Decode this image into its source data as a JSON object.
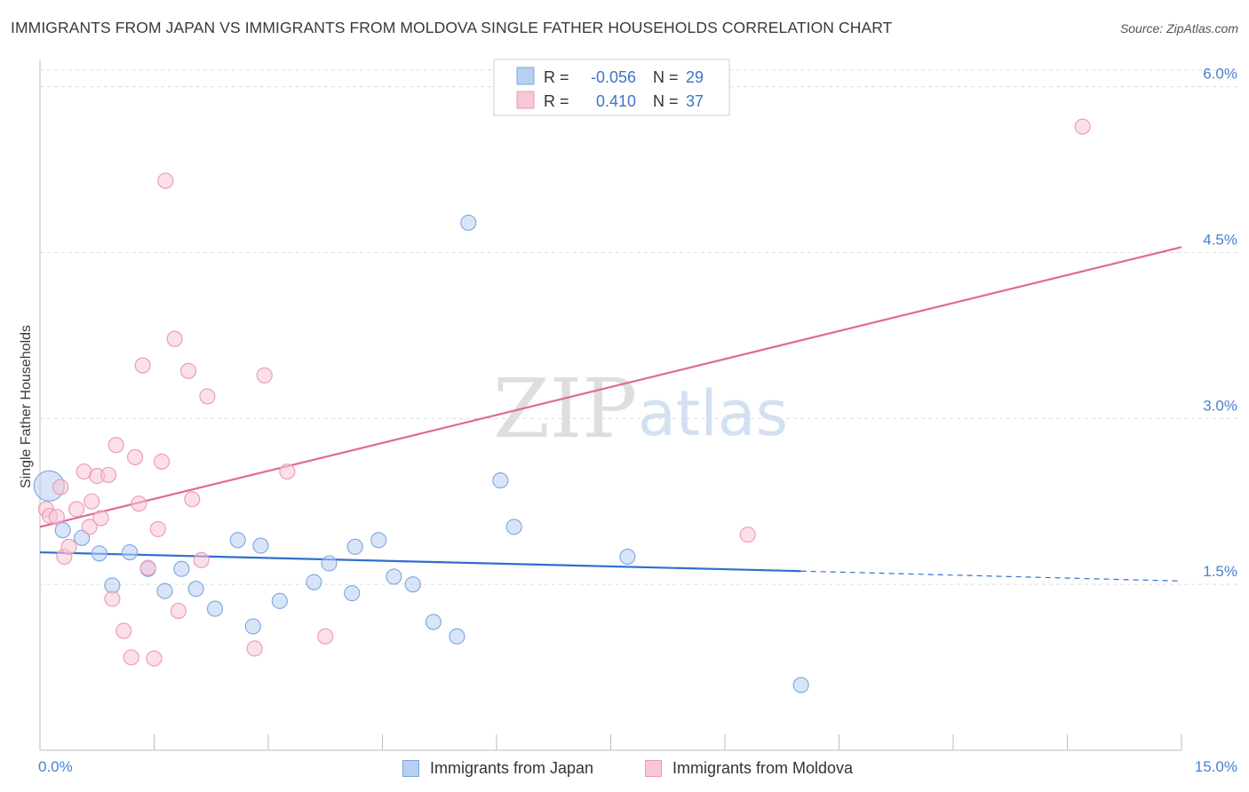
{
  "title": "IMMIGRANTS FROM JAPAN VS IMMIGRANTS FROM MOLDOVA SINGLE FATHER HOUSEHOLDS CORRELATION CHART",
  "source": "Source: ZipAtlas.com",
  "watermark": {
    "zip": "ZIP",
    "atlas": "atlas"
  },
  "colors": {
    "japan_fill": "#b8d0f2",
    "japan_stroke": "#7aa6e0",
    "japan_line": "#2f6fd0",
    "moldova_fill": "#f8c6d6",
    "moldova_stroke": "#ec97b3",
    "moldova_line": "#e06a92",
    "tick_text": "#4a7fd0",
    "grid": "#dcdcdc"
  },
  "stats_legend": {
    "japan": {
      "r_label": "R =",
      "r_value": "-0.056",
      "n_label": "N =",
      "n_value": "29"
    },
    "moldova": {
      "r_label": "R =",
      "r_value": "0.410",
      "n_label": "N =",
      "n_value": "37"
    }
  },
  "bottom_legend": {
    "japan": "Immigrants from Japan",
    "moldova": "Immigrants from Moldova"
  },
  "chart_data": {
    "type": "scatter",
    "title": "IMMIGRANTS FROM JAPAN VS IMMIGRANTS FROM MOLDOVA SINGLE FATHER HOUSEHOLDS CORRELATION CHART",
    "xlabel": "",
    "ylabel": "Single Father Households",
    "xlim": [
      0,
      15
    ],
    "ylim": [
      0,
      6.15
    ],
    "x_tick_labels": [
      "0.0%",
      "15.0%"
    ],
    "y_ticks": [
      1.5,
      3.0,
      4.5,
      6.0
    ],
    "y_tick_labels": [
      "1.5%",
      "3.0%",
      "4.5%",
      "6.0%"
    ],
    "grid": true,
    "legend_position": "top-center",
    "series": [
      {
        "name": "Immigrants from Japan",
        "points": [
          {
            "x": 0.12,
            "y": 2.39,
            "big": true
          },
          {
            "x": 0.3,
            "y": 1.99
          },
          {
            "x": 0.55,
            "y": 1.92
          },
          {
            "x": 0.78,
            "y": 1.78
          },
          {
            "x": 0.95,
            "y": 1.49
          },
          {
            "x": 1.18,
            "y": 1.79
          },
          {
            "x": 1.42,
            "y": 1.64
          },
          {
            "x": 1.64,
            "y": 1.44
          },
          {
            "x": 1.86,
            "y": 1.64
          },
          {
            "x": 2.05,
            "y": 1.46
          },
          {
            "x": 2.3,
            "y": 1.28
          },
          {
            "x": 2.6,
            "y": 1.9
          },
          {
            "x": 2.8,
            "y": 1.12
          },
          {
            "x": 2.9,
            "y": 1.85
          },
          {
            "x": 3.15,
            "y": 1.35
          },
          {
            "x": 3.6,
            "y": 1.52
          },
          {
            "x": 3.8,
            "y": 1.69
          },
          {
            "x": 4.1,
            "y": 1.42
          },
          {
            "x": 4.14,
            "y": 1.84
          },
          {
            "x": 4.45,
            "y": 1.9
          },
          {
            "x": 4.65,
            "y": 1.57
          },
          {
            "x": 4.9,
            "y": 1.5
          },
          {
            "x": 5.17,
            "y": 1.16
          },
          {
            "x": 5.48,
            "y": 1.03
          },
          {
            "x": 5.63,
            "y": 4.77
          },
          {
            "x": 6.05,
            "y": 2.44
          },
          {
            "x": 6.23,
            "y": 2.02
          },
          {
            "x": 7.72,
            "y": 1.75
          },
          {
            "x": 10.0,
            "y": 0.59
          }
        ],
        "trend": {
          "x0": 0,
          "y0": 1.79,
          "x1": 10.0,
          "y1": 1.62,
          "dash_x1": 15.0,
          "dash_y1": 1.53
        }
      },
      {
        "name": "Immigrants from Moldova",
        "points": [
          {
            "x": 0.08,
            "y": 2.18
          },
          {
            "x": 0.13,
            "y": 2.12
          },
          {
            "x": 0.22,
            "y": 2.11
          },
          {
            "x": 0.27,
            "y": 2.38
          },
          {
            "x": 0.32,
            "y": 1.75
          },
          {
            "x": 0.38,
            "y": 1.84
          },
          {
            "x": 0.48,
            "y": 2.18
          },
          {
            "x": 0.58,
            "y": 2.52
          },
          {
            "x": 0.65,
            "y": 2.02
          },
          {
            "x": 0.68,
            "y": 2.25
          },
          {
            "x": 0.75,
            "y": 2.48
          },
          {
            "x": 0.8,
            "y": 2.1
          },
          {
            "x": 0.9,
            "y": 2.49
          },
          {
            "x": 0.95,
            "y": 1.37
          },
          {
            "x": 1.0,
            "y": 2.76
          },
          {
            "x": 1.1,
            "y": 1.08
          },
          {
            "x": 1.2,
            "y": 0.84
          },
          {
            "x": 1.25,
            "y": 2.65
          },
          {
            "x": 1.3,
            "y": 2.23
          },
          {
            "x": 1.35,
            "y": 3.48
          },
          {
            "x": 1.42,
            "y": 1.65
          },
          {
            "x": 1.5,
            "y": 0.83
          },
          {
            "x": 1.55,
            "y": 2.0
          },
          {
            "x": 1.6,
            "y": 2.61
          },
          {
            "x": 1.65,
            "y": 5.15
          },
          {
            "x": 1.77,
            "y": 3.72
          },
          {
            "x": 1.82,
            "y": 1.26
          },
          {
            "x": 1.95,
            "y": 3.43
          },
          {
            "x": 2.0,
            "y": 2.27
          },
          {
            "x": 2.12,
            "y": 1.72
          },
          {
            "x": 2.2,
            "y": 3.2
          },
          {
            "x": 2.82,
            "y": 0.92
          },
          {
            "x": 2.95,
            "y": 3.39
          },
          {
            "x": 3.25,
            "y": 2.52
          },
          {
            "x": 3.75,
            "y": 1.03
          },
          {
            "x": 9.3,
            "y": 1.95
          },
          {
            "x": 13.7,
            "y": 5.64
          }
        ],
        "trend": {
          "x0": 0,
          "y0": 2.02,
          "x1": 15.0,
          "y1": 4.55
        }
      }
    ]
  }
}
